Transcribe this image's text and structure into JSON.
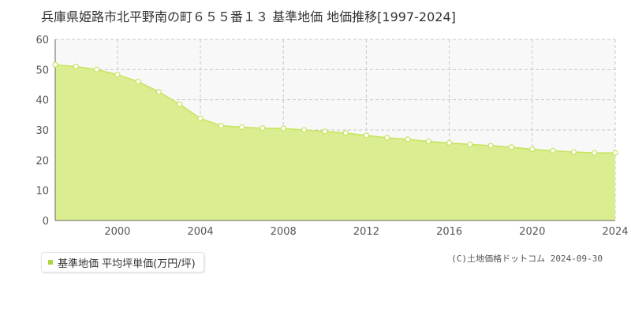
{
  "chart_data": {
    "type": "area",
    "title": "兵庫県姫路市北平野南の町６５５番１３ 基準地価 地価推移[1997-2024]",
    "xlabel": "",
    "ylabel": "",
    "xlim": [
      1997,
      2024
    ],
    "ylim": [
      0,
      60
    ],
    "y_ticks": [
      0,
      10,
      20,
      30,
      40,
      50,
      60
    ],
    "x_ticks": [
      2000,
      2004,
      2008,
      2012,
      2016,
      2020,
      2024
    ],
    "grid": true,
    "legend_position": "bottom-left",
    "x": [
      1997,
      1998,
      1999,
      2000,
      2001,
      2002,
      2003,
      2004,
      2005,
      2006,
      2007,
      2008,
      2009,
      2010,
      2011,
      2012,
      2013,
      2014,
      2015,
      2016,
      2017,
      2018,
      2019,
      2020,
      2021,
      2022,
      2023,
      2024
    ],
    "series": [
      {
        "name": "基準地価 平均坪単価(万円/坪)",
        "values": [
          51.6,
          51.0,
          50.0,
          48.3,
          46.0,
          42.6,
          38.5,
          33.8,
          31.4,
          30.9,
          30.6,
          30.5,
          30.0,
          29.5,
          29.0,
          28.2,
          27.4,
          26.9,
          26.2,
          25.7,
          25.2,
          24.8,
          24.3,
          23.6,
          23.1,
          22.7,
          22.4,
          22.4
        ]
      }
    ],
    "colors": {
      "fill": "#dbed91",
      "line": "#c6e35d",
      "marker_fill": "#ffffff",
      "grid": "#c9c9c9",
      "plot_bg": "#f8f8f8",
      "legend_swatch": "#b0d441"
    }
  },
  "legend": {
    "label": "基準地価 平均坪単価(万円/坪)"
  },
  "footer": {
    "copyright": "(C)土地価格ドットコム 2024-09-30"
  }
}
